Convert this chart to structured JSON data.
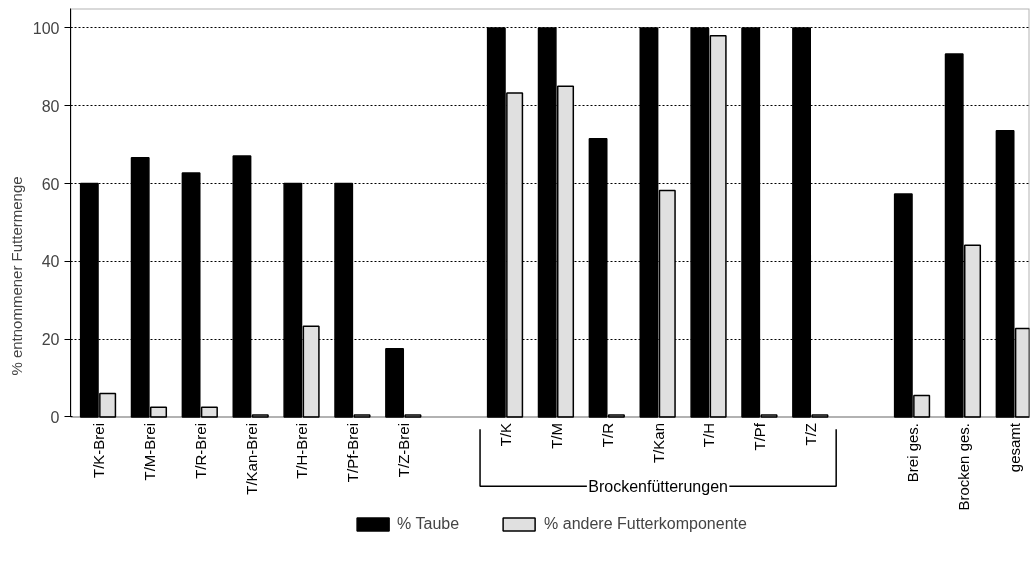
{
  "chart_data": {
    "type": "bar",
    "ylabel": "% entnommener Futtermenge",
    "categories": [
      "T/K-Brei",
      "T/M-Brei",
      "T/R-Brei",
      "T/Kan-Brei",
      "T/H-Brei",
      "T/Pf-Brei",
      "T/Z-Brei",
      null,
      "T/K",
      "T/M",
      "T/R",
      "T/Kan",
      "T/H",
      "T/Pf",
      "T/Z",
      null,
      "Brei ges.",
      "Brocken ges.",
      "gesamt"
    ],
    "series": [
      {
        "name": "% Taube",
        "color": "#000000",
        "values": [
          60,
          66.6,
          62.7,
          67.1,
          60,
          60,
          17.5,
          null,
          100,
          100,
          71.5,
          100,
          100,
          100,
          100,
          null,
          57.3,
          93.3,
          73.6
        ]
      },
      {
        "name": "% andere Futterkomponente",
        "color": "#e0e0e0",
        "values": [
          6,
          2.5,
          2.5,
          0.5,
          23.3,
          0.5,
          0.5,
          null,
          83.3,
          85,
          0.5,
          58.2,
          98,
          0.5,
          0.5,
          null,
          5.5,
          44.1,
          22.7
        ]
      }
    ],
    "annotations": [
      "Brockenfütterungen"
    ],
    "ylim": [
      0,
      105
    ],
    "yticks": [
      0,
      20,
      40,
      60,
      80,
      100
    ],
    "grid": "y",
    "legend": "bottom"
  }
}
